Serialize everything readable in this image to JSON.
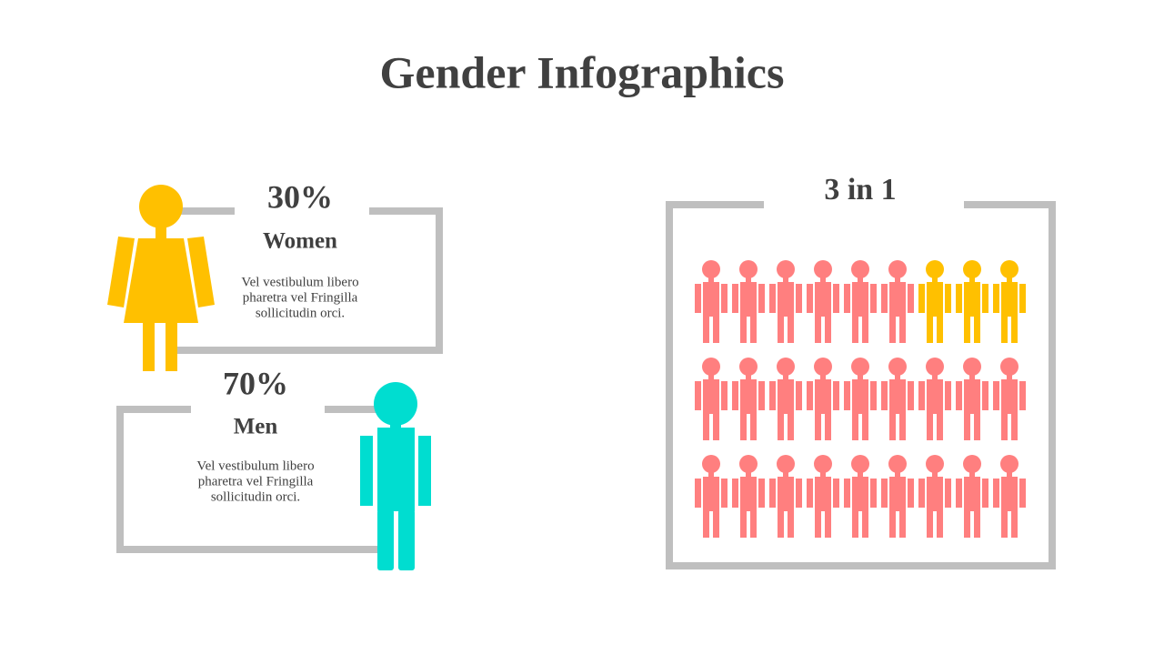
{
  "title": "Gender Infographics",
  "women": {
    "percent": "30%",
    "label": "Women",
    "description": [
      "Vel vestibulum libero",
      "pharetra vel Fringilla",
      "sollicitudin orci."
    ]
  },
  "men": {
    "percent": "70%",
    "label": "Men",
    "description": [
      "Vel vestibulum libero",
      "pharetra vel Fringilla",
      "sollicitudin orci."
    ]
  },
  "panel": {
    "title": "3 in 1"
  }
}
